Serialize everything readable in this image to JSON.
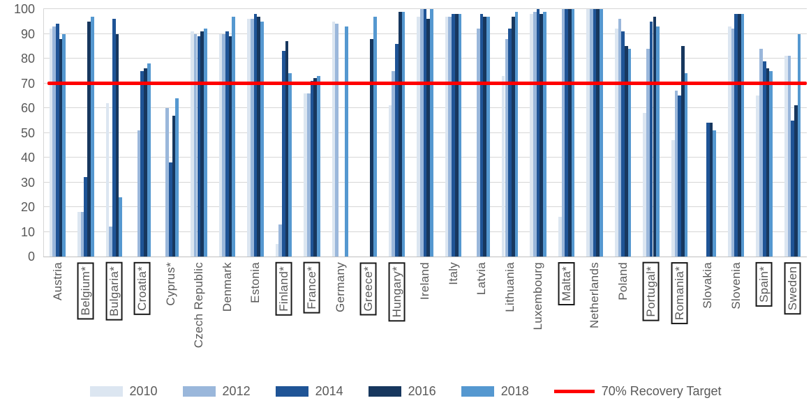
{
  "chart_data": {
    "type": "bar",
    "title": "",
    "xlabel": "",
    "ylabel": "",
    "ylim": [
      0,
      100
    ],
    "yticks": [
      "0",
      "10",
      "20",
      "30",
      "40",
      "50",
      "60",
      "70",
      "80",
      "90",
      "100"
    ],
    "grid": true,
    "legend_position": "bottom",
    "series": [
      "2010",
      "2012",
      "2014",
      "2016",
      "2018"
    ],
    "series_colors": [
      "#dce6f1",
      "#9ab7db",
      "#1f5496",
      "#17375e",
      "#5598d0"
    ],
    "target_line": {
      "value": 70,
      "label": "70% Recovery Target",
      "color": "#ff0000"
    },
    "countries": [
      {
        "label": "Austria",
        "boxed": false,
        "values": [
          92,
          93,
          94,
          88,
          90
        ]
      },
      {
        "label": "Belgium*",
        "boxed": true,
        "values": [
          18,
          18,
          32,
          95,
          97
        ]
      },
      {
        "label": "Bulgaria*",
        "boxed": true,
        "values": [
          62,
          12,
          96,
          90,
          24
        ]
      },
      {
        "label": "Croatia*",
        "boxed": true,
        "values": [
          null,
          51,
          75,
          76,
          78
        ]
      },
      {
        "label": "Cyprus*",
        "boxed": false,
        "values": [
          null,
          60,
          38,
          57,
          64
        ]
      },
      {
        "label": "Czech Republic",
        "boxed": false,
        "values": [
          91,
          90,
          89,
          91,
          92
        ]
      },
      {
        "label": "Denmark",
        "boxed": false,
        "values": [
          90,
          90,
          91,
          89,
          97
        ]
      },
      {
        "label": "Estonia",
        "boxed": false,
        "values": [
          96,
          96,
          98,
          97,
          95
        ]
      },
      {
        "label": "Finland*",
        "boxed": true,
        "values": [
          5,
          13,
          83,
          87,
          74
        ]
      },
      {
        "label": "France*",
        "boxed": true,
        "values": [
          66,
          66,
          71,
          72,
          73
        ]
      },
      {
        "label": "Germany",
        "boxed": false,
        "values": [
          95,
          94,
          null,
          null,
          93
        ]
      },
      {
        "label": "Greece*",
        "boxed": true,
        "values": [
          null,
          null,
          null,
          88,
          97
        ]
      },
      {
        "label": "Hungary*",
        "boxed": true,
        "values": [
          61,
          75,
          86,
          99,
          99
        ]
      },
      {
        "label": "Ireland",
        "boxed": false,
        "values": [
          97,
          100,
          100,
          96,
          100
        ]
      },
      {
        "label": "Italy",
        "boxed": false,
        "values": [
          97,
          97,
          98,
          98,
          98
        ]
      },
      {
        "label": "Latvia",
        "boxed": false,
        "values": [
          null,
          92,
          98,
          97,
          97
        ]
      },
      {
        "label": "Lithuania",
        "boxed": false,
        "values": [
          73,
          88,
          92,
          97,
          99
        ]
      },
      {
        "label": "Luxembourg",
        "boxed": false,
        "values": [
          98,
          99,
          100,
          98,
          99
        ]
      },
      {
        "label": "Malta*",
        "boxed": true,
        "values": [
          16,
          100,
          100,
          100,
          100
        ]
      },
      {
        "label": "Netherlands",
        "boxed": false,
        "values": [
          100,
          100,
          100,
          100,
          100
        ]
      },
      {
        "label": "Poland",
        "boxed": false,
        "values": [
          92,
          96,
          91,
          85,
          84
        ]
      },
      {
        "label": "Portugal*",
        "boxed": true,
        "values": [
          58,
          84,
          95,
          97,
          93
        ]
      },
      {
        "label": "Romania*",
        "boxed": true,
        "values": [
          47,
          67,
          65,
          85,
          74
        ]
      },
      {
        "label": "Slovakia",
        "boxed": false,
        "values": [
          null,
          null,
          54,
          54,
          51
        ]
      },
      {
        "label": "Slovenia",
        "boxed": false,
        "values": [
          93,
          92,
          98,
          98,
          98
        ]
      },
      {
        "label": "Spain*",
        "boxed": true,
        "values": [
          65,
          84,
          79,
          76,
          75
        ]
      },
      {
        "label": "Sweden",
        "boxed": true,
        "values": [
          81,
          81,
          55,
          61,
          90
        ]
      }
    ]
  }
}
